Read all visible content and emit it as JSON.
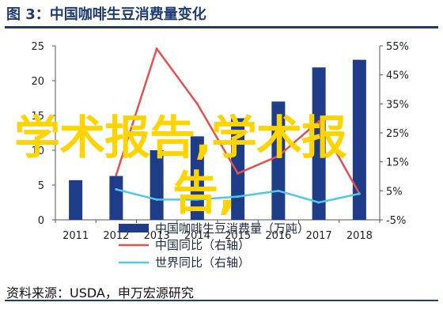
{
  "header": {
    "title": "图 3：中国咖啡生豆消费量变化"
  },
  "footer": {
    "source": "资料来源：USDA，申万宏源研究"
  },
  "watermark": {
    "line1": "学术报告,学术报",
    "line2": "告,"
  },
  "colors": {
    "bar": "#1f3c88",
    "china_yoy": "#e2524f",
    "world_yoy": "#4fc9e6",
    "axis": "#555555",
    "title": "#1f3b73",
    "watermark": "#ffd400"
  },
  "chart_data": {
    "type": "bar",
    "categories": [
      "2011",
      "2012",
      "2013",
      "2014",
      "2015",
      "2016",
      "2017",
      "2018"
    ],
    "series": [
      {
        "name": "中国咖啡生豆消费量（万吨）",
        "type": "bar",
        "axis": "left",
        "values": [
          5.7,
          6.3,
          10.0,
          12.0,
          14.6,
          17.0,
          21.9,
          23.0
        ]
      },
      {
        "name": "中国同比（右轴）",
        "type": "line",
        "axis": "right",
        "values": [
          null,
          10.5,
          54.0,
          35.0,
          11.0,
          17.0,
          29.0,
          4.0
        ]
      },
      {
        "name": "世界同比（右轴）",
        "type": "line",
        "axis": "right",
        "values": [
          null,
          5.5,
          2.0,
          2.0,
          3.0,
          5.0,
          1.0,
          4.0
        ]
      }
    ],
    "y_left": {
      "lim": [
        0,
        25
      ],
      "ticks": [
        0,
        5,
        10,
        15,
        20,
        25
      ]
    },
    "y_right": {
      "lim": [
        -5,
        55
      ],
      "ticks": [
        "-5%",
        "5%",
        "15%",
        "25%",
        "35%",
        "45%",
        "55%"
      ]
    },
    "legend_position": "bottom",
    "grid": false
  }
}
